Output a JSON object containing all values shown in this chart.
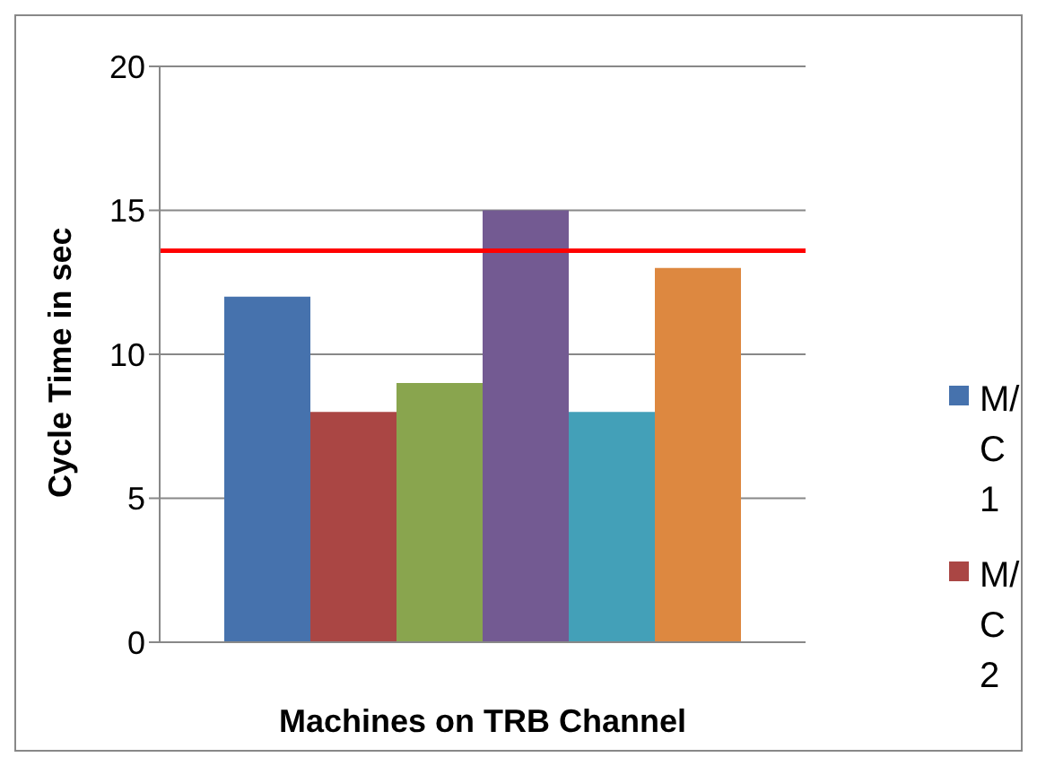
{
  "chart_data": {
    "type": "bar",
    "xlabel": "Machines on TRB Channel",
    "ylabel": "Cycle Time in sec",
    "categories": [
      null
    ],
    "series": [
      {
        "name": "M/C 1",
        "color": "#4672ad",
        "values": [
          12
        ]
      },
      {
        "name": "M/C 2",
        "color": "#aa4644",
        "values": [
          8
        ]
      },
      {
        "color": "#89a54e",
        "values": [
          9
        ]
      },
      {
        "color": "#735a92",
        "values": [
          15
        ]
      },
      {
        "color": "#43a0b8",
        "values": [
          8
        ]
      },
      {
        "color": "#dd8840",
        "values": [
          13
        ]
      }
    ],
    "ylim": [
      0,
      20
    ],
    "yticks": [
      0,
      5,
      10,
      15,
      20
    ],
    "grid": "y",
    "legend": "right",
    "ref_lines": [
      {
        "axis": "y",
        "value": 13.6,
        "color": "#ff0000"
      }
    ]
  }
}
